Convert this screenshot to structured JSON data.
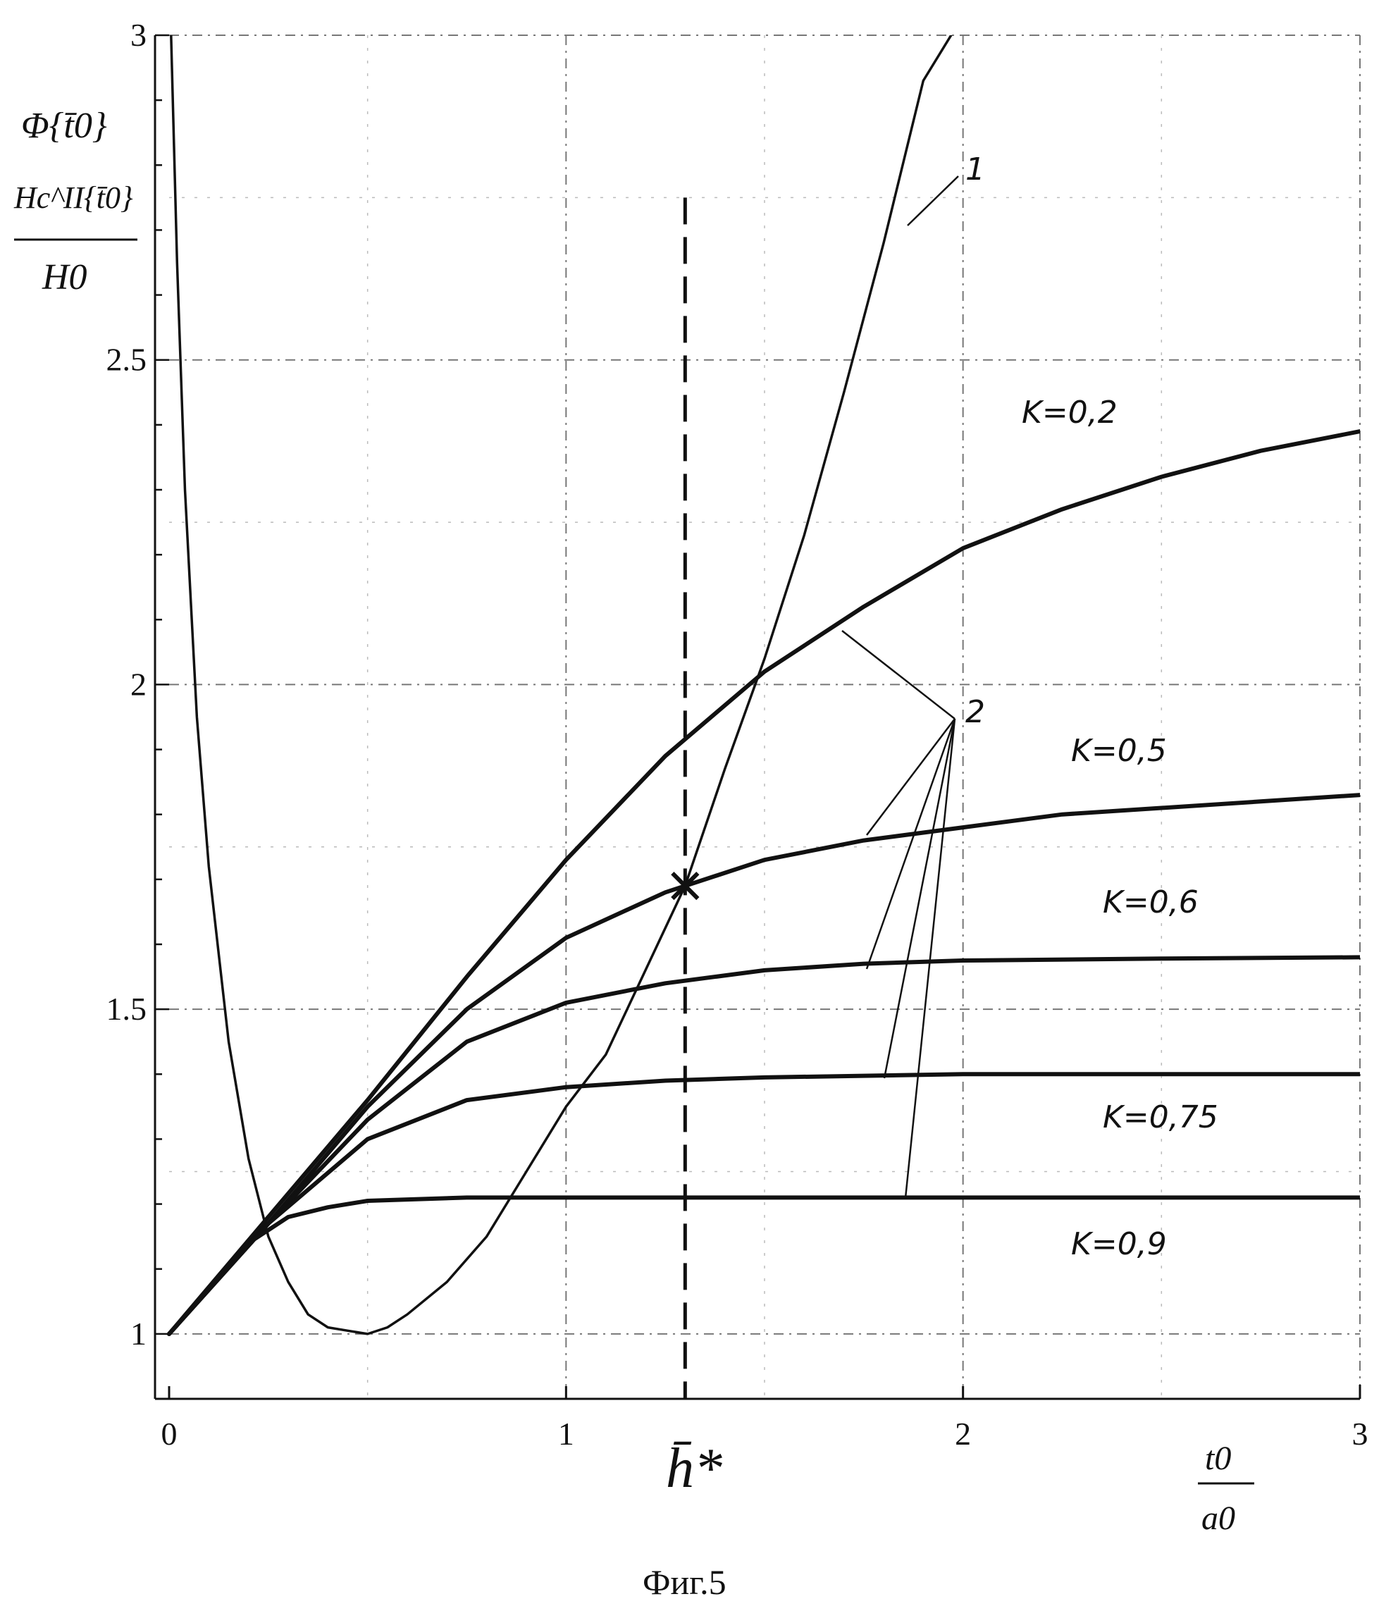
{
  "chart_data": {
    "type": "line",
    "title": "",
    "caption": "Фиг.5",
    "xlabel_num": "t0",
    "xlabel_den": "a0",
    "ylabel_line1": "Φ{t̄0}",
    "ylabel_num": "Hc^II{t̄0}",
    "ylabel_den": "H0",
    "xlim": [
      0,
      3
    ],
    "ylim": [
      0.9,
      3
    ],
    "grid": true,
    "x_ticks": [
      {
        "value": 0,
        "label": "0"
      },
      {
        "value": 1,
        "label": "1"
      },
      {
        "value": 2,
        "label": "2"
      },
      {
        "value": 3,
        "label": "3"
      }
    ],
    "y_ticks": [
      {
        "value": 1,
        "label": "1"
      },
      {
        "value": 1.5,
        "label": "1.5"
      },
      {
        "value": 2,
        "label": "2"
      },
      {
        "value": 2.5,
        "label": "2.5"
      },
      {
        "value": 3,
        "label": "3"
      }
    ],
    "hstar": {
      "x": 1.3,
      "label": "h̄*"
    },
    "intersection": {
      "x": 1.3,
      "y": 1.69
    },
    "curve1_label": "1",
    "group2_label": "2",
    "series": [
      {
        "id": "phi",
        "x": [
          0.005,
          0.02,
          0.04,
          0.07,
          0.1,
          0.15,
          0.2,
          0.25,
          0.3,
          0.35,
          0.4,
          0.45,
          0.5,
          0.55,
          0.6,
          0.7,
          0.8,
          0.9,
          1.0,
          1.1,
          1.2,
          1.3,
          1.4,
          1.5,
          1.6,
          1.7,
          1.8,
          1.9,
          1.97
        ],
        "y": [
          3.0,
          2.65,
          2.3,
          1.95,
          1.72,
          1.45,
          1.27,
          1.15,
          1.08,
          1.03,
          1.01,
          1.005,
          1.0,
          1.01,
          1.03,
          1.08,
          1.15,
          1.25,
          1.35,
          1.43,
          1.56,
          1.69,
          1.87,
          2.04,
          2.23,
          2.45,
          2.68,
          2.93,
          3.0
        ]
      },
      {
        "id": "k02",
        "label": "K=0,2",
        "x": [
          0,
          0.25,
          0.5,
          0.75,
          1.0,
          1.25,
          1.5,
          1.75,
          2.0,
          2.25,
          2.5,
          2.75,
          3.0
        ],
        "y": [
          1.0,
          1.18,
          1.36,
          1.55,
          1.73,
          1.89,
          2.02,
          2.12,
          2.21,
          2.27,
          2.32,
          2.36,
          2.39
        ]
      },
      {
        "id": "k05",
        "label": "K=0,5",
        "x": [
          0,
          0.25,
          0.5,
          0.75,
          1.0,
          1.25,
          1.5,
          1.75,
          2.0,
          2.25,
          2.5,
          2.75,
          3.0
        ],
        "y": [
          1.0,
          1.17,
          1.35,
          1.5,
          1.61,
          1.68,
          1.73,
          1.76,
          1.78,
          1.8,
          1.81,
          1.82,
          1.83
        ]
      },
      {
        "id": "k06",
        "label": "K=0,6",
        "x": [
          0,
          0.25,
          0.5,
          0.75,
          1.0,
          1.25,
          1.5,
          1.75,
          2.0,
          2.5,
          3.0
        ],
        "y": [
          1.0,
          1.17,
          1.33,
          1.45,
          1.51,
          1.54,
          1.56,
          1.57,
          1.575,
          1.578,
          1.58
        ]
      },
      {
        "id": "k075",
        "label": "K=0,75",
        "x": [
          0,
          0.25,
          0.5,
          0.75,
          1.0,
          1.25,
          1.5,
          2.0,
          2.5,
          3.0
        ],
        "y": [
          1.0,
          1.17,
          1.3,
          1.36,
          1.38,
          1.39,
          1.395,
          1.4,
          1.4,
          1.4
        ]
      },
      {
        "id": "k09",
        "label": "K=0,9",
        "x": [
          0,
          0.1,
          0.2,
          0.3,
          0.4,
          0.5,
          0.75,
          1.0,
          2.0,
          3.0
        ],
        "y": [
          1.0,
          1.07,
          1.14,
          1.18,
          1.195,
          1.205,
          1.21,
          1.21,
          1.21,
          1.21
        ]
      }
    ]
  }
}
